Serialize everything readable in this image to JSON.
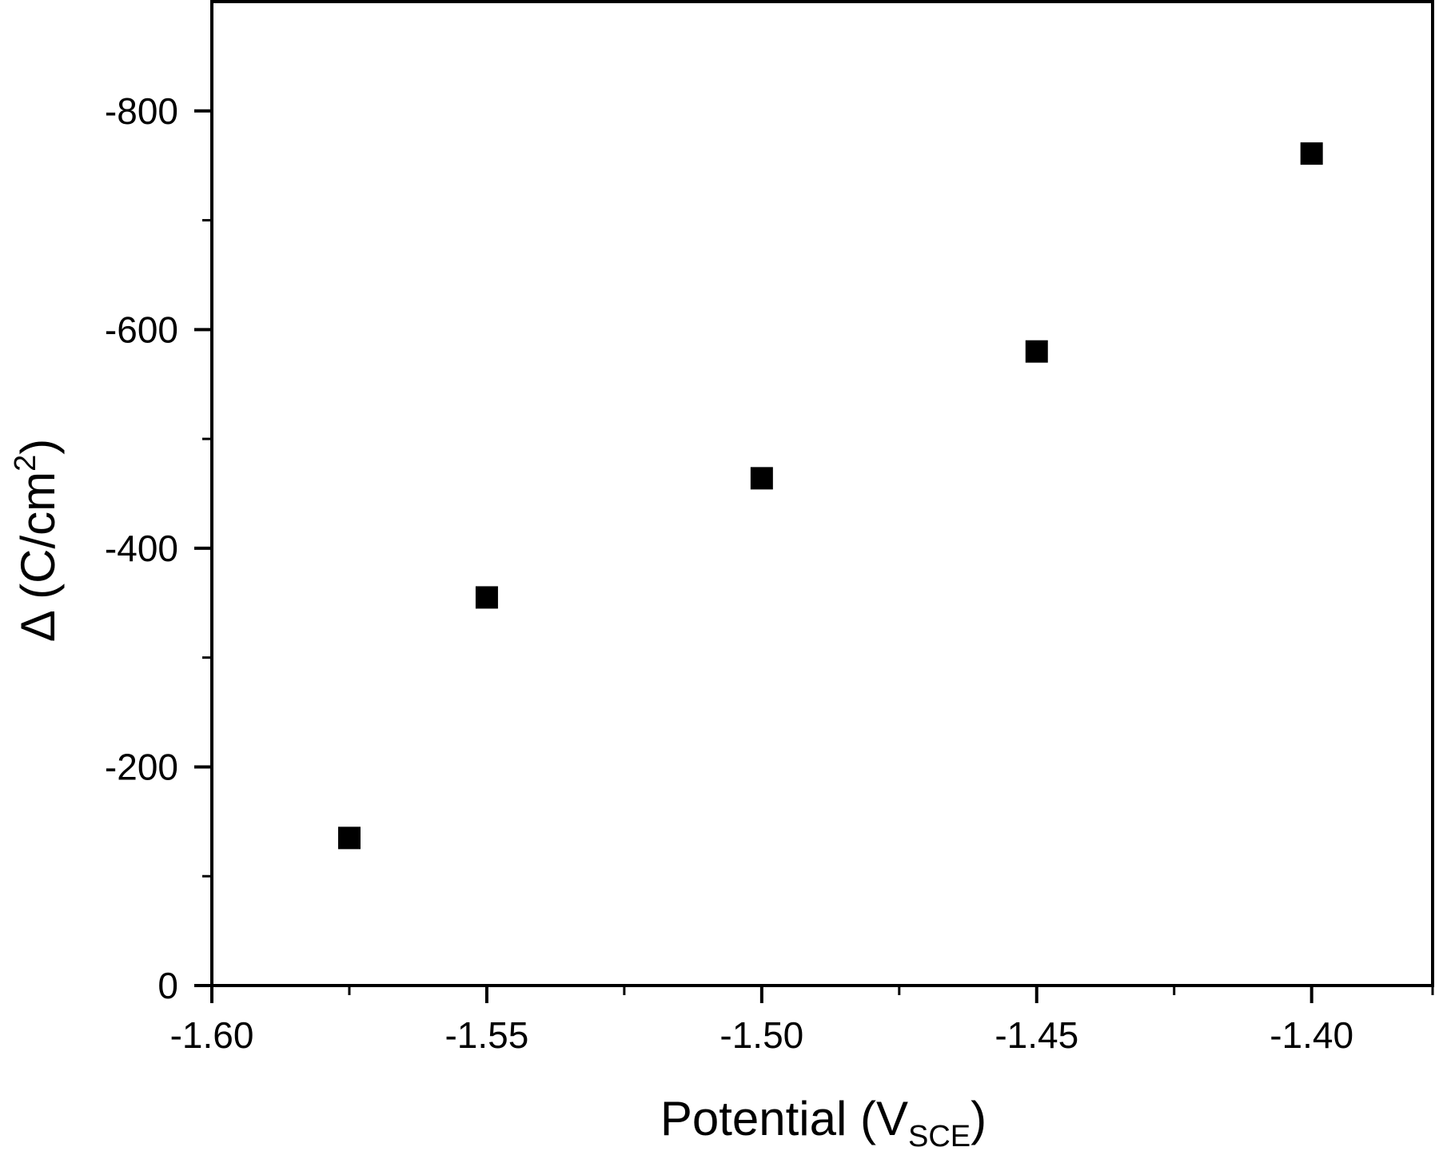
{
  "chart_data": {
    "type": "scatter",
    "title": "",
    "xlabel": "Potential (V_SCE)",
    "xlabel_main": "Potential (V",
    "xlabel_sub": "SCE",
    "xlabel_close": ")",
    "ylabel": "Δ (C/cm²)",
    "ylabel_main": "Δ (C/cm",
    "ylabel_sup": "2",
    "ylabel_close": ")",
    "xlim": [
      -1.6,
      -1.378
    ],
    "ylim": [
      0,
      -900
    ],
    "x_ticks": [
      -1.6,
      -1.55,
      -1.5,
      -1.45,
      -1.4
    ],
    "x_tick_labels": [
      "-1.60",
      "-1.55",
      "-1.50",
      "-1.45",
      "-1.40"
    ],
    "x_minor_ticks": [
      -1.575,
      -1.525,
      -1.475,
      -1.425
    ],
    "y_ticks": [
      0,
      -200,
      -400,
      -600,
      -800
    ],
    "y_tick_labels": [
      "0",
      "-200",
      "-400",
      "-600",
      "-800"
    ],
    "y_minor_ticks": [
      -100,
      -300,
      -500,
      -700
    ],
    "grid": false,
    "legend": null,
    "marker": "filled-square",
    "marker_color": "#000000",
    "series": [
      {
        "name": "Δ",
        "x": [
          -1.575,
          -1.55,
          -1.5,
          -1.45,
          -1.4
        ],
        "y": [
          -135,
          -355,
          -464,
          -580,
          -761
        ]
      }
    ]
  }
}
